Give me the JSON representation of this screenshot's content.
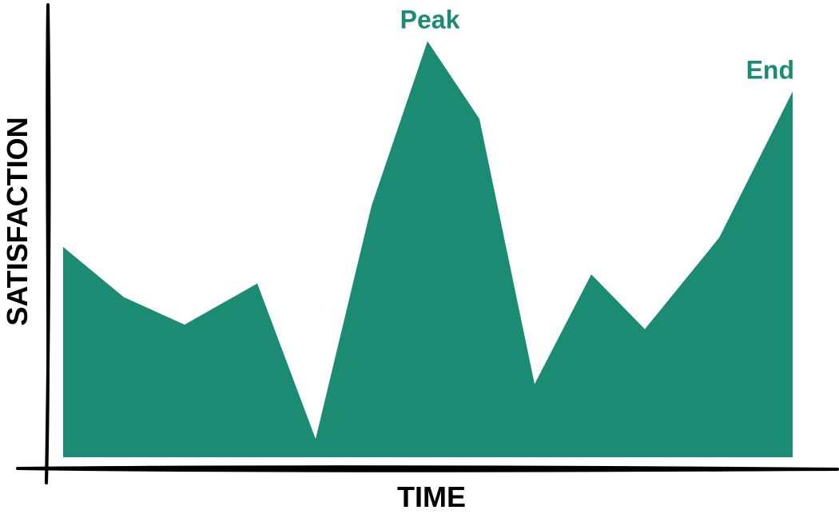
{
  "chart_data": {
    "type": "area",
    "title": "",
    "xlabel": "TIME",
    "ylabel": "SATISFACTION",
    "x": [
      0,
      1,
      2,
      3,
      4,
      5,
      6,
      7,
      8,
      9,
      10,
      11,
      12
    ],
    "series": [
      {
        "values": [
          46,
          35,
          29,
          38,
          4,
          55,
          91,
          74,
          16,
          40,
          28,
          48,
          80
        ]
      }
    ],
    "xlim": [
      0,
      12
    ],
    "ylim": [
      0,
      100
    ],
    "grid": false,
    "annotations": [
      {
        "text": "Peak",
        "x": 6,
        "y": 91
      },
      {
        "text": "End",
        "x": 12,
        "y": 80
      }
    ],
    "colors": {
      "fill": "#1b8b74",
      "annotation": "#1b8b74",
      "axis": "#000000"
    }
  }
}
